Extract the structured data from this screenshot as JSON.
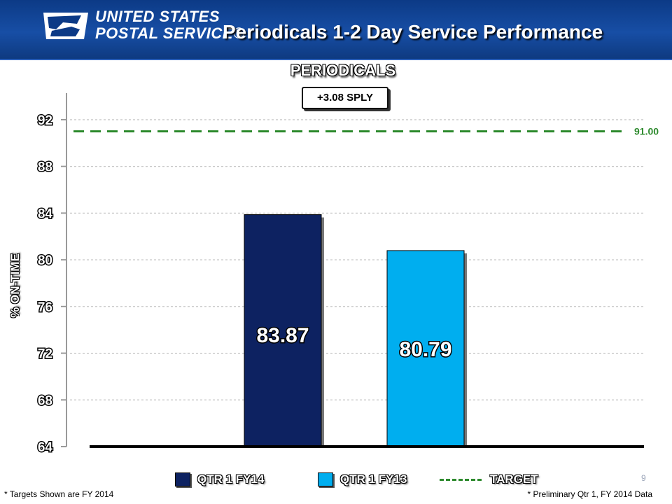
{
  "header": {
    "logo_line1": "UNITED STATES",
    "logo_line2": "POSTAL SERVICE®",
    "slide_title": "Periodicals 1-2 Day Service Performance"
  },
  "colors": {
    "banner": "#174ea5",
    "fy14": "#0d2261",
    "fy13": "#00aeef",
    "target": "#2d8a2d"
  },
  "chart_data": {
    "type": "bar",
    "title": "PERIODICALS",
    "annotation": "+3.08 SPLY",
    "ylabel": "% ON-TIME",
    "xlabel": "",
    "ylim": [
      64,
      92
    ],
    "yticks": [
      92,
      88,
      84,
      80,
      76,
      72,
      68,
      64
    ],
    "grid": true,
    "series": [
      {
        "name": "QTR 1 FY14",
        "value": 83.87,
        "label": "83.87",
        "color": "#0d2261"
      },
      {
        "name": "QTR 1 FY13",
        "value": 80.79,
        "label": "80.79",
        "color": "#00aeef"
      }
    ],
    "target": {
      "name": "TARGET",
      "value": 91.0,
      "label": "91.00",
      "color": "#2d8a2d"
    },
    "legend": [
      "QTR 1 FY14",
      "QTR 1 FY13",
      "TARGET"
    ],
    "legend_position": "bottom"
  },
  "footnotes": {
    "left": "* Targets Shown are FY 2014",
    "right": "* Preliminary Qtr 1, FY 2014 Data"
  },
  "page_number": "9"
}
